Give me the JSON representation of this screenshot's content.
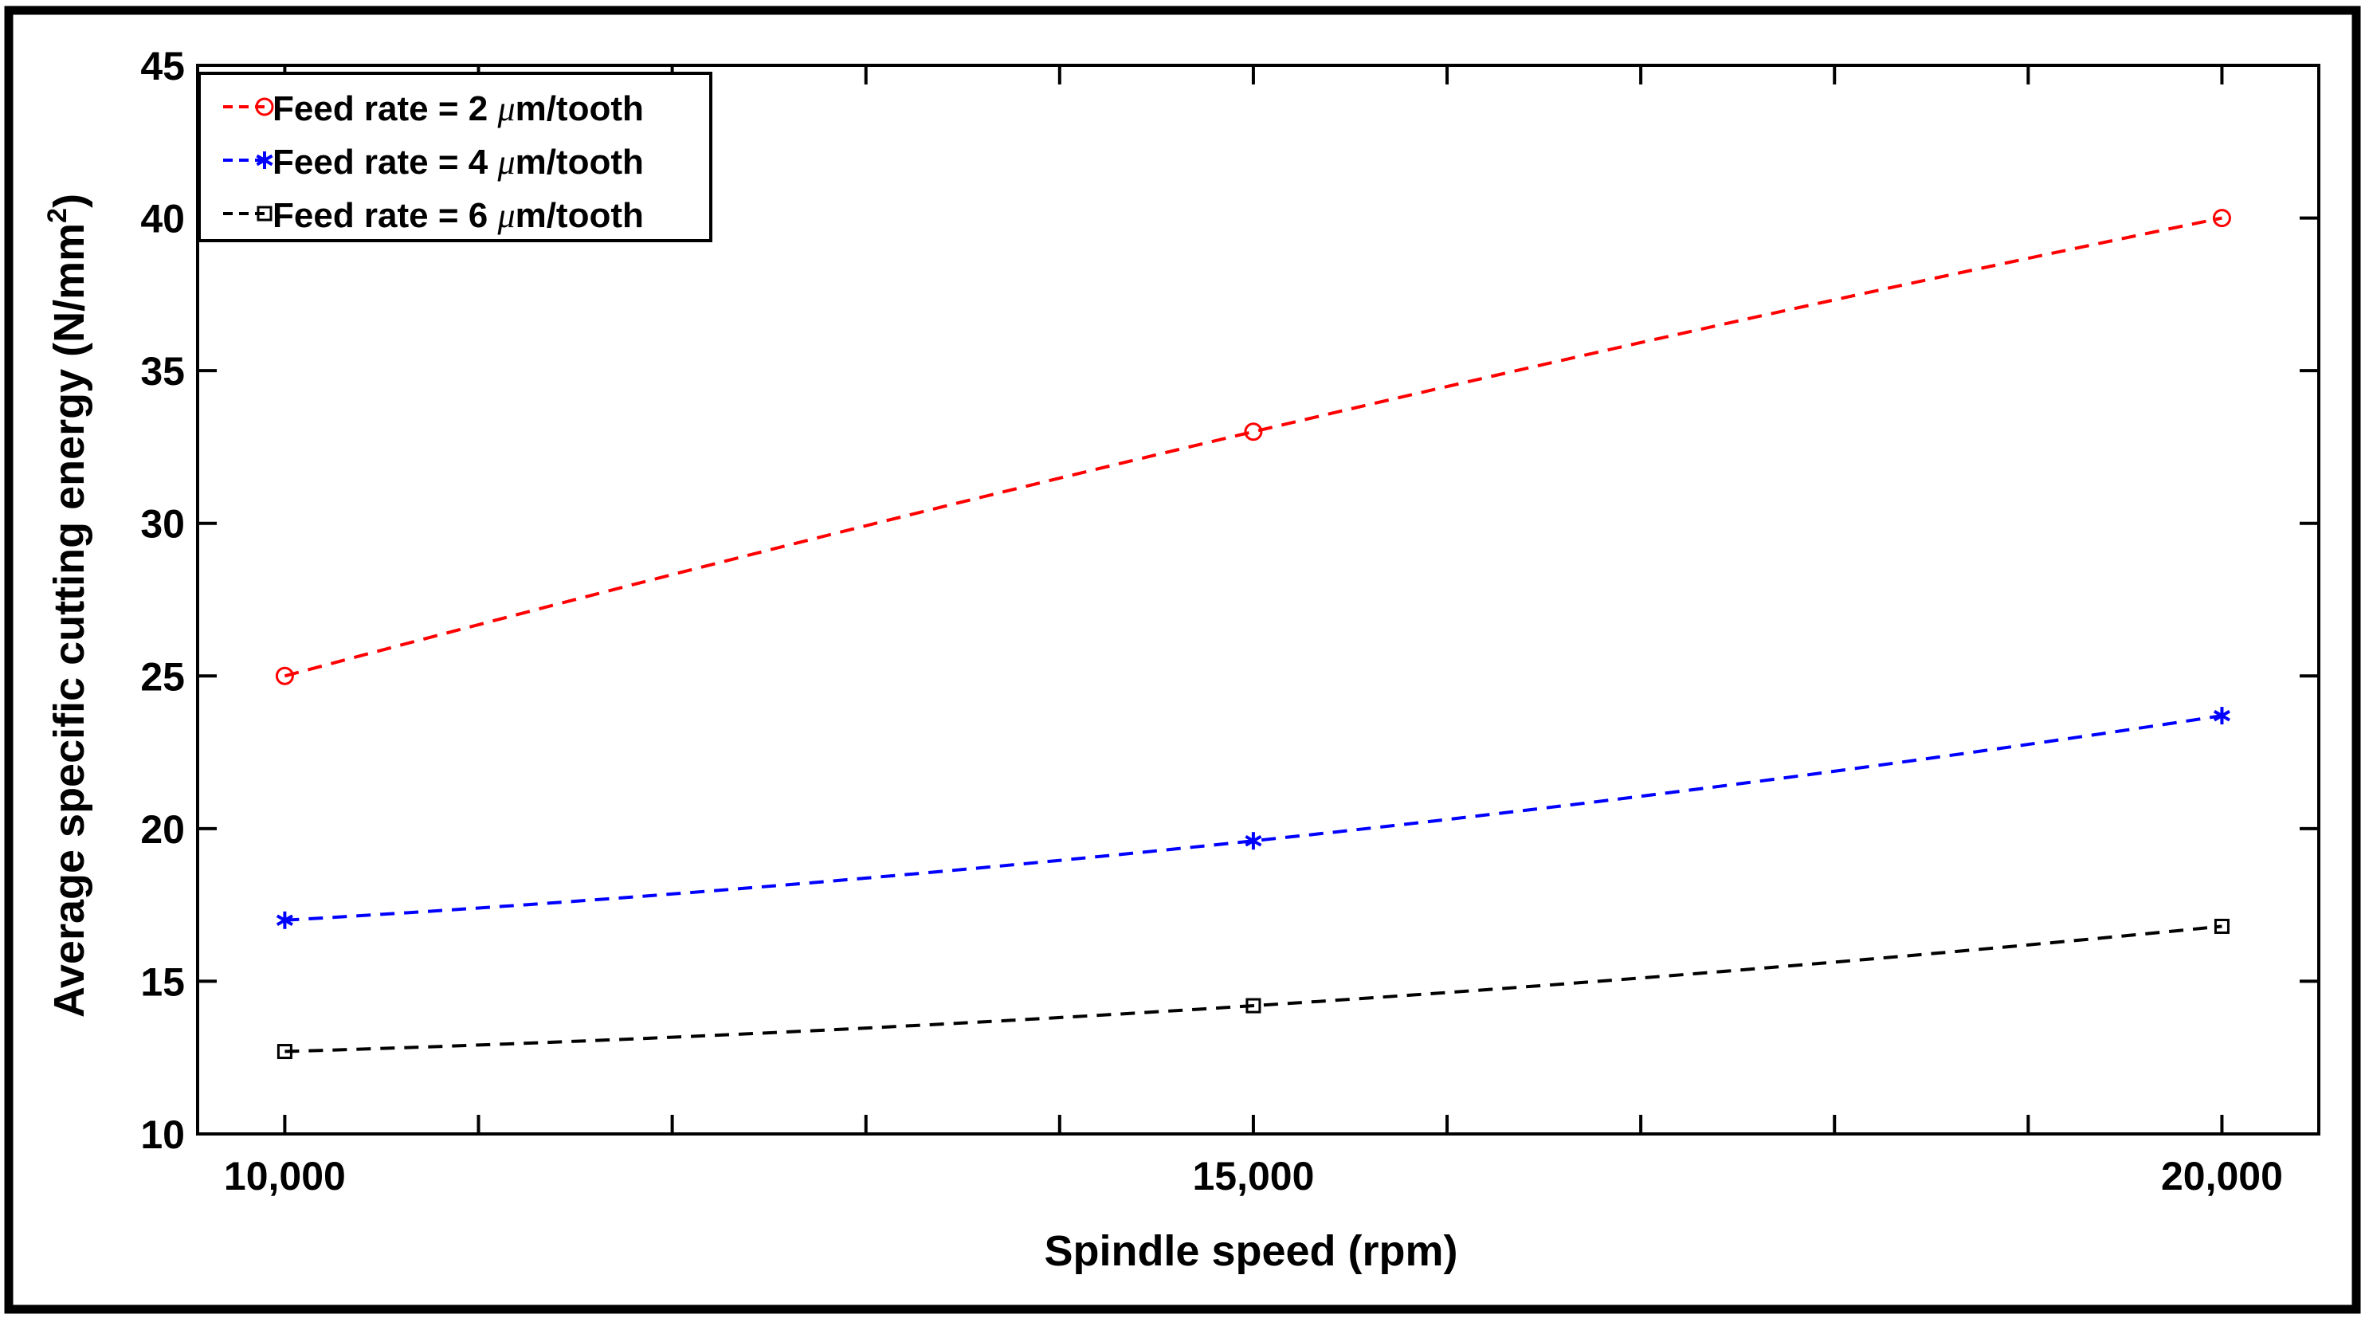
{
  "chart_data": {
    "type": "line",
    "title": "",
    "xlabel": "Spindle speed (rpm)",
    "ylabel_main": "Average specific cutting energy (N/mm",
    "ylabel_sup": "2",
    "ylabel_close": ")",
    "xlim": [
      9550,
      20500
    ],
    "ylim": [
      10,
      45
    ],
    "x": [
      10000,
      15000,
      20000
    ],
    "x_tick_labels": [
      "10,000",
      "15,000",
      "20,000"
    ],
    "x_minor_ticks": [
      11000,
      12000,
      13000,
      14000,
      16000,
      17000,
      18000,
      19000
    ],
    "y_ticks": [
      10,
      15,
      20,
      25,
      30,
      35,
      40,
      45
    ],
    "y_tick_labels": [
      "10",
      "15",
      "20",
      "25",
      "30",
      "35",
      "40",
      "45"
    ],
    "grid": false,
    "legend_position": "top-left",
    "series": [
      {
        "name": "Feed rate = 2 μm/tooth",
        "label_prefix": "Feed rate = 2 ",
        "label_mu": "μ",
        "label_suffix": "m/tooth",
        "color": "#ff0000",
        "marker": "circle",
        "values": [
          25.0,
          33.0,
          40.0
        ]
      },
      {
        "name": "Feed rate = 4 μm/tooth",
        "label_prefix": "Feed rate = 4 ",
        "label_mu": "μ",
        "label_suffix": "m/tooth",
        "color": "#0000ff",
        "marker": "asterisk",
        "values": [
          17.0,
          19.6,
          23.7
        ]
      },
      {
        "name": "Feed rate = 6 μm/tooth",
        "label_prefix": "Feed rate = 6 ",
        "label_mu": "μ",
        "label_suffix": "m/tooth",
        "color": "#000000",
        "marker": "square",
        "values": [
          12.7,
          14.2,
          16.8
        ]
      }
    ]
  }
}
